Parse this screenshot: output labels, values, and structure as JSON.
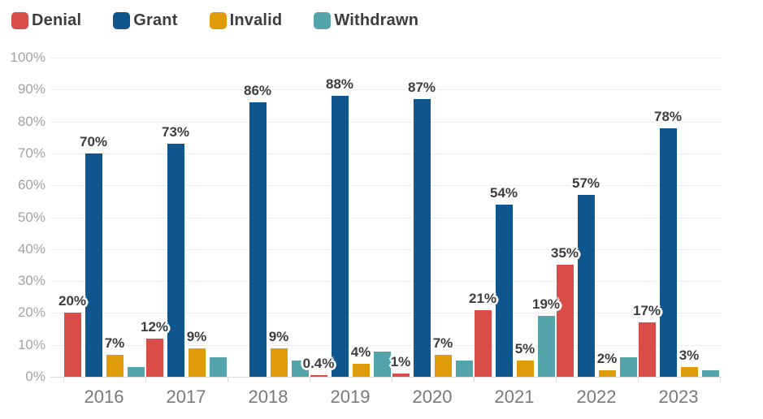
{
  "chart_data": {
    "type": "bar",
    "title": "",
    "categories": [
      "2016",
      "2017",
      "2018",
      "2019",
      "2020",
      "2021",
      "2022",
      "2023"
    ],
    "series": [
      {
        "name": "Denial",
        "color": "#D94C47",
        "values": [
          20,
          12,
          0,
          0.4,
          1,
          21,
          35,
          17
        ],
        "labels": [
          "20%",
          "12%",
          "",
          "0.4%",
          "1%",
          "21%",
          "35%",
          "17%"
        ]
      },
      {
        "name": "Grant",
        "color": "#0E568D",
        "values": [
          70,
          73,
          86,
          88,
          87,
          54,
          57,
          78
        ],
        "labels": [
          "70%",
          "73%",
          "86%",
          "88%",
          "87%",
          "54%",
          "57%",
          "78%"
        ]
      },
      {
        "name": "Invalid",
        "color": "#DF9B08",
        "values": [
          7,
          9,
          9,
          4,
          7,
          5,
          2,
          3
        ],
        "labels": [
          "7%",
          "9%",
          "9%",
          "4%",
          "7%",
          "5%",
          "2%",
          "3%"
        ]
      },
      {
        "name": "Withdrawn",
        "color": "#54A5AB",
        "values": [
          3,
          6,
          5,
          8,
          5,
          19,
          6,
          2
        ],
        "labels": [
          "",
          "",
          "",
          "",
          "",
          "19%",
          "",
          ""
        ]
      }
    ],
    "y_ticks": [
      "100%",
      "90%",
      "80%",
      "70%",
      "60%",
      "50%",
      "40%",
      "30%",
      "20%",
      "10%",
      "0%"
    ],
    "ylim": [
      0,
      100
    ],
    "grid": true,
    "legend_position": "top-left",
    "xlabel": "",
    "ylabel": ""
  }
}
